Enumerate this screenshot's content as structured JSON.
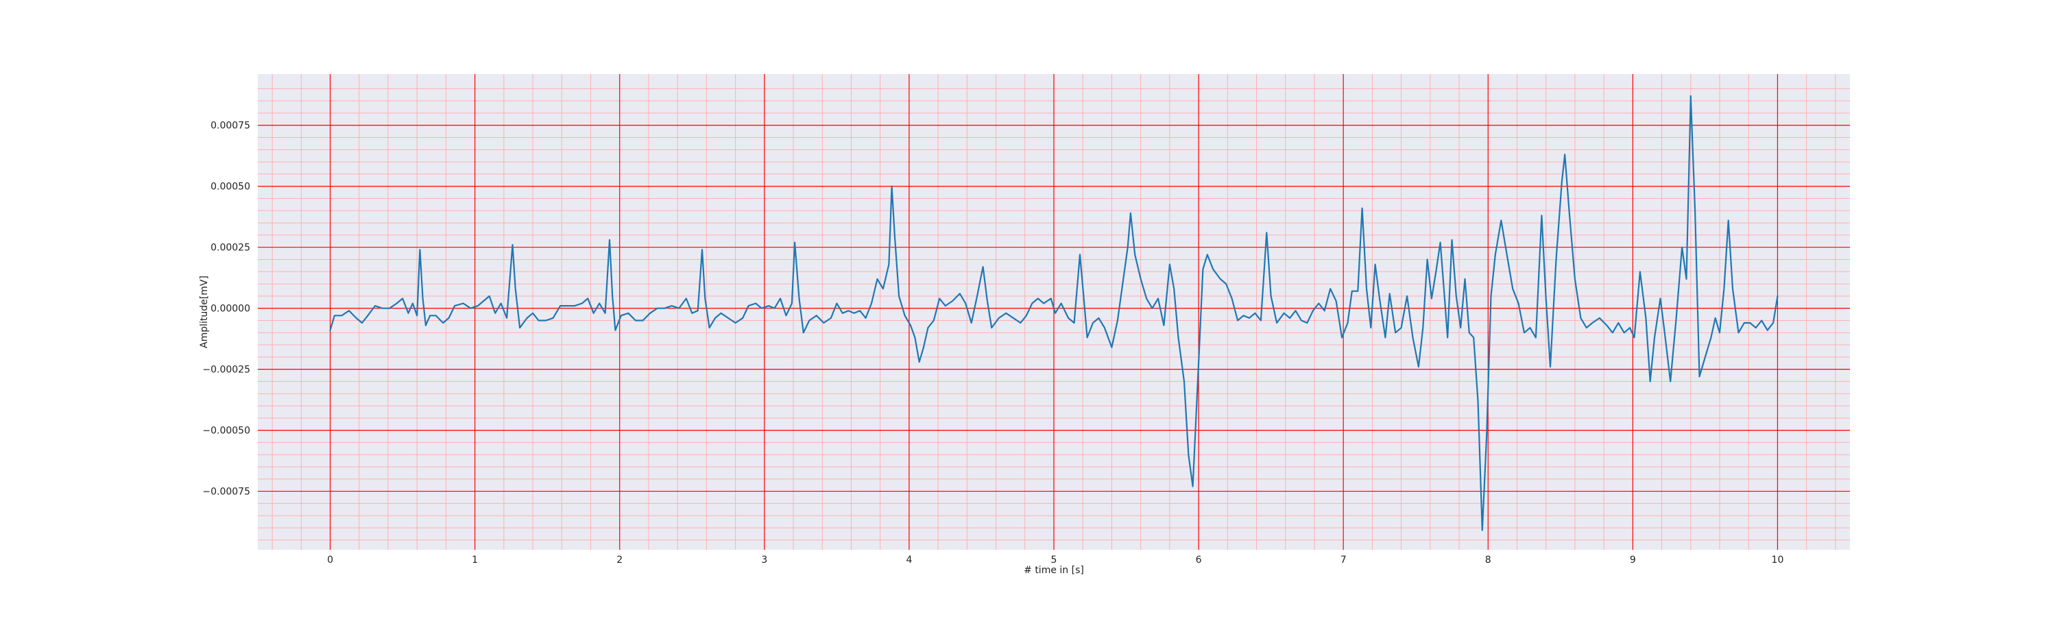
{
  "chart_data": {
    "type": "line",
    "title": "",
    "xlabel": "# time in [s]",
    "ylabel": "Amplitude[mV]",
    "xlim": [
      -0.5,
      10.5
    ],
    "ylim": [
      -0.00099,
      0.00096
    ],
    "x_ticks": [
      0,
      1,
      2,
      3,
      4,
      5,
      6,
      7,
      8,
      9,
      10
    ],
    "x_tick_labels": [
      "0",
      "1",
      "2",
      "3",
      "4",
      "5",
      "6",
      "7",
      "8",
      "9",
      "10"
    ],
    "y_ticks": [
      -0.00075,
      -0.0005,
      -0.00025,
      0.0,
      0.00025,
      0.0005,
      0.00075
    ],
    "y_tick_labels": [
      "−0.00075",
      "−0.00050",
      "−0.00025",
      "0.00000",
      "0.00025",
      "0.00050",
      "0.00075"
    ],
    "grid": true,
    "minor_grid": true,
    "legend": "none",
    "colors": {
      "background": "#eaeaf2",
      "major_grid": "#ff0000",
      "minor_grid": "#ffb0b0",
      "line": "#1f77b4"
    },
    "series": [
      {
        "points": [
          [
            0.0,
            -9e-05
          ],
          [
            0.03,
            -3e-05
          ],
          [
            0.08,
            -3e-05
          ],
          [
            0.13,
            -1e-05
          ],
          [
            0.18,
            -4e-05
          ],
          [
            0.22,
            -6e-05
          ],
          [
            0.26,
            -3e-05
          ],
          [
            0.31,
            1e-05
          ],
          [
            0.36,
            0.0
          ],
          [
            0.41,
            0.0
          ],
          [
            0.46,
            2e-05
          ],
          [
            0.5,
            4e-05
          ],
          [
            0.54,
            -2e-05
          ],
          [
            0.57,
            2e-05
          ],
          [
            0.6,
            -3e-05
          ],
          [
            0.62,
            0.00024
          ],
          [
            0.64,
            4e-05
          ],
          [
            0.66,
            -7e-05
          ],
          [
            0.69,
            -3e-05
          ],
          [
            0.73,
            -3e-05
          ],
          [
            0.78,
            -6e-05
          ],
          [
            0.82,
            -4e-05
          ],
          [
            0.86,
            1e-05
          ],
          [
            0.92,
            2e-05
          ],
          [
            0.97,
            0.0
          ],
          [
            1.02,
            1e-05
          ],
          [
            1.06,
            3e-05
          ],
          [
            1.1,
            5e-05
          ],
          [
            1.14,
            -2e-05
          ],
          [
            1.18,
            2e-05
          ],
          [
            1.22,
            -4e-05
          ],
          [
            1.26,
            0.00026
          ],
          [
            1.28,
            8e-05
          ],
          [
            1.31,
            -8e-05
          ],
          [
            1.36,
            -4e-05
          ],
          [
            1.4,
            -2e-05
          ],
          [
            1.44,
            -5e-05
          ],
          [
            1.49,
            -5e-05
          ],
          [
            1.54,
            -4e-05
          ],
          [
            1.59,
            1e-05
          ],
          [
            1.64,
            1e-05
          ],
          [
            1.69,
            1e-05
          ],
          [
            1.74,
            2e-05
          ],
          [
            1.78,
            4e-05
          ],
          [
            1.82,
            -2e-05
          ],
          [
            1.86,
            2e-05
          ],
          [
            1.9,
            -2e-05
          ],
          [
            1.93,
            0.00028
          ],
          [
            1.95,
            5e-05
          ],
          [
            1.97,
            -9e-05
          ],
          [
            2.01,
            -3e-05
          ],
          [
            2.06,
            -2e-05
          ],
          [
            2.11,
            -5e-05
          ],
          [
            2.16,
            -5e-05
          ],
          [
            2.21,
            -2e-05
          ],
          [
            2.26,
            0.0
          ],
          [
            2.31,
            0.0
          ],
          [
            2.36,
            1e-05
          ],
          [
            2.41,
            0.0
          ],
          [
            2.46,
            4e-05
          ],
          [
            2.5,
            -2e-05
          ],
          [
            2.54,
            -1e-05
          ],
          [
            2.57,
            0.00024
          ],
          [
            2.59,
            4e-05
          ],
          [
            2.62,
            -8e-05
          ],
          [
            2.66,
            -4e-05
          ],
          [
            2.7,
            -2e-05
          ],
          [
            2.75,
            -4e-05
          ],
          [
            2.8,
            -6e-05
          ],
          [
            2.85,
            -4e-05
          ],
          [
            2.89,
            1e-05
          ],
          [
            2.94,
            2e-05
          ],
          [
            2.98,
            0.0
          ],
          [
            3.03,
            1e-05
          ],
          [
            3.07,
            0.0
          ],
          [
            3.11,
            4e-05
          ],
          [
            3.15,
            -3e-05
          ],
          [
            3.19,
            2e-05
          ],
          [
            3.21,
            0.00027
          ],
          [
            3.24,
            4e-05
          ],
          [
            3.27,
            -0.0001
          ],
          [
            3.31,
            -5e-05
          ],
          [
            3.36,
            -3e-05
          ],
          [
            3.41,
            -6e-05
          ],
          [
            3.46,
            -4e-05
          ],
          [
            3.5,
            2e-05
          ],
          [
            3.54,
            -2e-05
          ],
          [
            3.58,
            -1e-05
          ],
          [
            3.62,
            -2e-05
          ],
          [
            3.66,
            -1e-05
          ],
          [
            3.7,
            -4e-05
          ],
          [
            3.74,
            2e-05
          ],
          [
            3.78,
            0.00012
          ],
          [
            3.82,
            8e-05
          ],
          [
            3.86,
            0.00018
          ],
          [
            3.88,
            0.0005
          ],
          [
            3.9,
            0.0003
          ],
          [
            3.93,
            5e-05
          ],
          [
            3.97,
            -3e-05
          ],
          [
            4.01,
            -7e-05
          ],
          [
            4.04,
            -0.00012
          ],
          [
            4.07,
            -0.00022
          ],
          [
            4.1,
            -0.00016
          ],
          [
            4.13,
            -8e-05
          ],
          [
            4.17,
            -5e-05
          ],
          [
            4.21,
            4e-05
          ],
          [
            4.25,
            1e-05
          ],
          [
            4.3,
            3e-05
          ],
          [
            4.35,
            6e-05
          ],
          [
            4.39,
            2e-05
          ],
          [
            4.43,
            -6e-05
          ],
          [
            4.47,
            5e-05
          ],
          [
            4.51,
            0.00017
          ],
          [
            4.54,
            3e-05
          ],
          [
            4.57,
            -8e-05
          ],
          [
            4.62,
            -4e-05
          ],
          [
            4.67,
            -2e-05
          ],
          [
            4.72,
            -4e-05
          ],
          [
            4.77,
            -6e-05
          ],
          [
            4.81,
            -3e-05
          ],
          [
            4.85,
            2e-05
          ],
          [
            4.89,
            4e-05
          ],
          [
            4.93,
            2e-05
          ],
          [
            4.98,
            4e-05
          ],
          [
            5.01,
            -2e-05
          ],
          [
            5.05,
            2e-05
          ],
          [
            5.1,
            -4e-05
          ],
          [
            5.14,
            -6e-05
          ],
          [
            5.18,
            0.00022
          ],
          [
            5.21,
            2e-05
          ],
          [
            5.23,
            -0.00012
          ],
          [
            5.27,
            -6e-05
          ],
          [
            5.31,
            -4e-05
          ],
          [
            5.35,
            -8e-05
          ],
          [
            5.4,
            -0.00016
          ],
          [
            5.44,
            -5e-05
          ],
          [
            5.48,
            0.00012
          ],
          [
            5.51,
            0.00025
          ],
          [
            5.53,
            0.00039
          ],
          [
            5.56,
            0.00022
          ],
          [
            5.6,
            0.00012
          ],
          [
            5.64,
            4e-05
          ],
          [
            5.68,
            0.0
          ],
          [
            5.72,
            4e-05
          ],
          [
            5.76,
            -7e-05
          ],
          [
            5.8,
            0.00018
          ],
          [
            5.83,
            8e-05
          ],
          [
            5.86,
            -0.00012
          ],
          [
            5.9,
            -0.0003
          ],
          [
            5.93,
            -0.0006
          ],
          [
            5.96,
            -0.00073
          ],
          [
            5.99,
            -0.00035
          ],
          [
            6.03,
            0.00016
          ],
          [
            6.06,
            0.00022
          ],
          [
            6.1,
            0.00016
          ],
          [
            6.15,
            0.00012
          ],
          [
            6.19,
            0.0001
          ],
          [
            6.23,
            4e-05
          ],
          [
            6.27,
            -5e-05
          ],
          [
            6.31,
            -3e-05
          ],
          [
            6.35,
            -4e-05
          ],
          [
            6.39,
            -2e-05
          ],
          [
            6.43,
            -5e-05
          ],
          [
            6.47,
            0.00031
          ],
          [
            6.5,
            5e-05
          ],
          [
            6.54,
            -6e-05
          ],
          [
            6.59,
            -2e-05
          ],
          [
            6.63,
            -4e-05
          ],
          [
            6.67,
            -1e-05
          ],
          [
            6.71,
            -5e-05
          ],
          [
            6.75,
            -6e-05
          ],
          [
            6.79,
            -1e-05
          ],
          [
            6.83,
            2e-05
          ],
          [
            6.87,
            -1e-05
          ],
          [
            6.91,
            8e-05
          ],
          [
            6.95,
            3e-05
          ],
          [
            6.99,
            -0.00012
          ],
          [
            7.03,
            -6e-05
          ],
          [
            7.06,
            7e-05
          ],
          [
            7.1,
            7e-05
          ],
          [
            7.13,
            0.00041
          ],
          [
            7.16,
            8e-05
          ],
          [
            7.19,
            -8e-05
          ],
          [
            7.22,
            0.00018
          ],
          [
            7.25,
            4e-05
          ],
          [
            7.29,
            -0.00012
          ],
          [
            7.32,
            6e-05
          ],
          [
            7.36,
            -0.0001
          ],
          [
            7.4,
            -8e-05
          ],
          [
            7.44,
            5e-05
          ],
          [
            7.48,
            -0.00012
          ],
          [
            7.52,
            -0.00024
          ],
          [
            7.55,
            -8e-05
          ],
          [
            7.58,
            0.0002
          ],
          [
            7.61,
            4e-05
          ],
          [
            7.64,
            0.00015
          ],
          [
            7.67,
            0.00027
          ],
          [
            7.7,
            4e-05
          ],
          [
            7.72,
            -0.00012
          ],
          [
            7.75,
            0.00028
          ],
          [
            7.78,
            5e-05
          ],
          [
            7.81,
            -8e-05
          ],
          [
            7.84,
            0.00012
          ],
          [
            7.87,
            -0.0001
          ],
          [
            7.9,
            -0.00012
          ],
          [
            7.93,
            -0.00038
          ],
          [
            7.96,
            -0.00091
          ],
          [
            7.99,
            -0.00052
          ],
          [
            8.02,
            5e-05
          ],
          [
            8.05,
            0.00022
          ],
          [
            8.09,
            0.00036
          ],
          [
            8.13,
            0.00022
          ],
          [
            8.17,
            8e-05
          ],
          [
            8.21,
            2e-05
          ],
          [
            8.25,
            -0.0001
          ],
          [
            8.29,
            -8e-05
          ],
          [
            8.33,
            -0.00012
          ],
          [
            8.37,
            0.00038
          ],
          [
            8.4,
            4e-05
          ],
          [
            8.43,
            -0.00024
          ],
          [
            8.47,
            0.0002
          ],
          [
            8.51,
            0.00052
          ],
          [
            8.53,
            0.00063
          ],
          [
            8.56,
            0.0004
          ],
          [
            8.6,
            0.00012
          ],
          [
            8.64,
            -4e-05
          ],
          [
            8.68,
            -8e-05
          ],
          [
            8.72,
            -6e-05
          ],
          [
            8.77,
            -4e-05
          ],
          [
            8.82,
            -7e-05
          ],
          [
            8.86,
            -0.0001
          ],
          [
            8.9,
            -6e-05
          ],
          [
            8.94,
            -0.0001
          ],
          [
            8.98,
            -8e-05
          ],
          [
            9.01,
            -0.00012
          ],
          [
            9.05,
            0.00015
          ],
          [
            9.09,
            -4e-05
          ],
          [
            9.12,
            -0.0003
          ],
          [
            9.15,
            -0.00012
          ],
          [
            9.19,
            4e-05
          ],
          [
            9.22,
            -0.0001
          ],
          [
            9.26,
            -0.0003
          ],
          [
            9.3,
            -4e-05
          ],
          [
            9.34,
            0.00025
          ],
          [
            9.37,
            0.00012
          ],
          [
            9.4,
            0.00087
          ],
          [
            9.43,
            0.0004
          ],
          [
            9.46,
            -0.00028
          ],
          [
            9.5,
            -0.0002
          ],
          [
            9.54,
            -0.00012
          ],
          [
            9.57,
            -4e-05
          ],
          [
            9.6,
            -0.0001
          ],
          [
            9.63,
            8e-05
          ],
          [
            9.66,
            0.00036
          ],
          [
            9.69,
            8e-05
          ],
          [
            9.73,
            -0.0001
          ],
          [
            9.77,
            -6e-05
          ],
          [
            9.81,
            -6e-05
          ],
          [
            9.85,
            -8e-05
          ],
          [
            9.89,
            -5e-05
          ],
          [
            9.93,
            -9e-05
          ],
          [
            9.97,
            -6e-05
          ],
          [
            10.0,
            5e-05
          ]
        ]
      }
    ]
  }
}
